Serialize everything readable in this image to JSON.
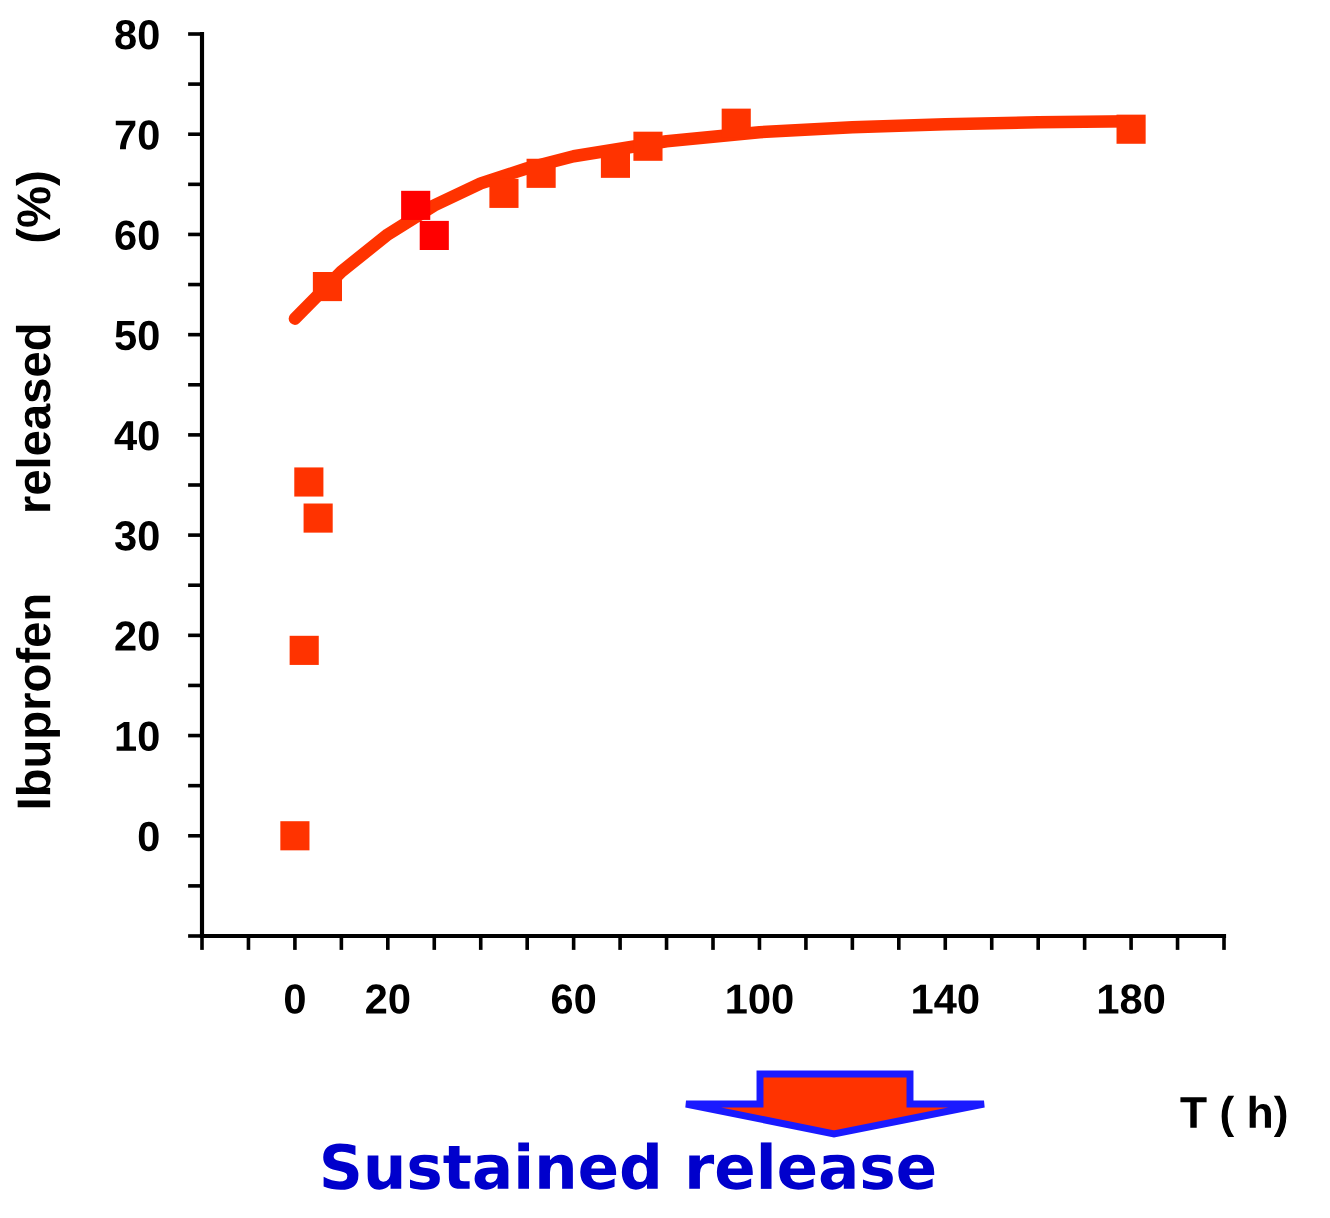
{
  "chart_data": {
    "type": "scatter",
    "xlabel": "T ( h)",
    "ylabel": "Ibuprofen      released      (%)",
    "annotations": [
      "Sustained release"
    ],
    "marker": "square",
    "grid": false,
    "xlim": [
      -20,
      200
    ],
    "ylim": [
      -10,
      80
    ],
    "xticks": [
      {
        "value": -20,
        "label": null
      },
      {
        "value": -10,
        "label": null
      },
      0,
      {
        "value": 10,
        "label": null
      },
      20,
      {
        "value": 30,
        "label": null
      },
      {
        "value": 40,
        "label": null
      },
      {
        "value": 50,
        "label": null
      },
      60,
      {
        "value": 70,
        "label": null
      },
      {
        "value": 80,
        "label": null
      },
      {
        "value": 90,
        "label": null
      },
      100,
      {
        "value": 110,
        "label": null
      },
      {
        "value": 120,
        "label": null
      },
      {
        "value": 130,
        "label": null
      },
      140,
      {
        "value": 150,
        "label": null
      },
      {
        "value": 160,
        "label": null
      },
      {
        "value": 170,
        "label": null
      },
      180,
      {
        "value": 190,
        "label": null
      },
      {
        "value": 200,
        "label": null
      }
    ],
    "yticks": [
      {
        "value": -10,
        "label": null
      },
      {
        "value": -5,
        "label": null
      },
      0,
      {
        "value": 5,
        "label": null
      },
      10,
      {
        "value": 15,
        "label": null
      },
      20,
      {
        "value": 25,
        "label": null
      },
      30,
      {
        "value": 35,
        "label": null
      },
      40,
      {
        "value": 45,
        "label": null
      },
      50,
      {
        "value": 55,
        "label": null
      },
      60,
      {
        "value": 65,
        "label": null
      },
      70,
      {
        "value": 75,
        "label": null
      },
      80
    ],
    "series": [
      {
        "type": "line",
        "marker": "none",
        "color": "#ff3300",
        "x": [
          0,
          10,
          20,
          30,
          40,
          50,
          60,
          80,
          100,
          120,
          140,
          160,
          180
        ],
        "values": [
          51.6,
          56.3,
          60.0,
          62.9,
          65.1,
          66.6,
          67.8,
          69.3,
          70.2,
          70.7,
          71.0,
          71.2,
          71.3
        ]
      },
      {
        "colors": [
          "#ff3300",
          "#ff3300",
          "#ff3300",
          "#ff3300",
          "#ff3300",
          "#ff0000",
          "#ff0000",
          "#ff3300",
          "#ff3300",
          "#ff3300",
          "#ff3300",
          "#ff3300",
          "#ff3300"
        ],
        "x": [
          0,
          2,
          3,
          5,
          7,
          26,
          30,
          45,
          53,
          69,
          76,
          95,
          180
        ],
        "values": [
          0,
          18.5,
          35.3,
          31.7,
          54.8,
          62.9,
          59.9,
          64.1,
          66.1,
          67.1,
          68.8,
          71.1,
          70.5
        ]
      }
    ]
  }
}
